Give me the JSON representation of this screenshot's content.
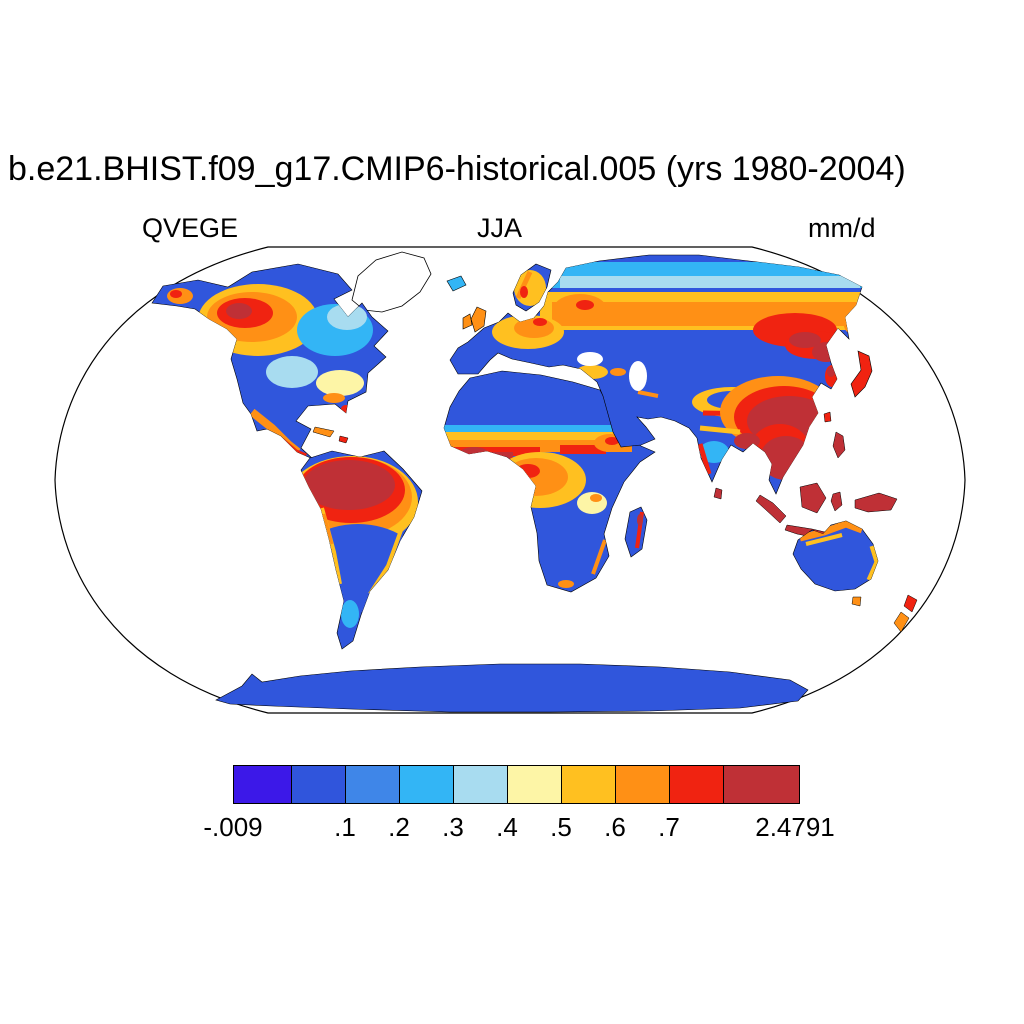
{
  "figure": {
    "title": "b.e21.BHIST.f09_g17.CMIP6-historical.005 (yrs 1980-2004)",
    "variable_label": "QVEGE",
    "season_label": "JJA",
    "units_label": "mm/d",
    "projection": "Robinson"
  },
  "colorbar": {
    "labels": [
      "-.009",
      ".1",
      ".2",
      ".3",
      ".4",
      ".5",
      ".6",
      ".7",
      "2.4791"
    ],
    "colors": [
      "#3c18e8",
      "#3055dc",
      "#3f86e8",
      "#33b5f5",
      "#a8dcf0",
      "#fdf5a6",
      "#ffc020",
      "#ff9015",
      "#f02311",
      "#bf3036"
    ],
    "min_value": "-.009",
    "max_value": "2.4791",
    "levels": [
      0.1,
      0.2,
      0.3,
      0.4,
      0.5,
      0.6,
      0.7
    ]
  },
  "map": {
    "land_base_color": "#3056dc",
    "ocean_color": "#ffffff",
    "outline_color": "#000000"
  }
}
